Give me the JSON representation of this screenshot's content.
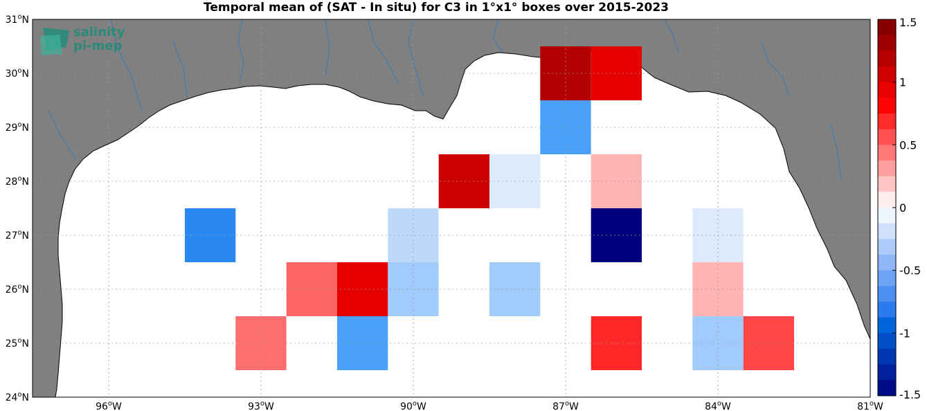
{
  "title": "Temporal mean of (SAT - In situ) for C3 in 1°x1° boxes over 2015-2023",
  "logo": {
    "line1": "salinity",
    "line2": "pi-mep"
  },
  "colors": {
    "land": "#808080",
    "ocean": "#ffffff",
    "coast": "#000000",
    "river": "#3a7ab8",
    "grid": "#9a9a9a"
  },
  "axes": {
    "lon_ticks": [
      {
        "value": -96,
        "deg": "96",
        "hem": "W"
      },
      {
        "value": -93,
        "deg": "93",
        "hem": "W"
      },
      {
        "value": -90,
        "deg": "90",
        "hem": "W"
      },
      {
        "value": -87,
        "deg": "87",
        "hem": "W"
      },
      {
        "value": -84,
        "deg": "84",
        "hem": "W"
      },
      {
        "value": -81,
        "deg": "81",
        "hem": "W"
      }
    ],
    "lat_ticks": [
      {
        "value": 31,
        "deg": "31",
        "hem": "N"
      },
      {
        "value": 30,
        "deg": "30",
        "hem": "N"
      },
      {
        "value": 29,
        "deg": "29",
        "hem": "N"
      },
      {
        "value": 28,
        "deg": "28",
        "hem": "N"
      },
      {
        "value": 27,
        "deg": "27",
        "hem": "N"
      },
      {
        "value": 26,
        "deg": "26",
        "hem": "N"
      },
      {
        "value": 25,
        "deg": "25",
        "hem": "N"
      },
      {
        "value": 24,
        "deg": "24",
        "hem": "N"
      }
    ]
  },
  "colorbar": {
    "range": [
      -1.5,
      1.5
    ],
    "levels": 24,
    "tick_labels": [
      "1.5",
      "1",
      "0.5",
      "0",
      "-0.5",
      "-1",
      "-1.5"
    ],
    "tick_values": [
      1.5,
      1,
      0.5,
      0,
      -0.5,
      -1,
      -1.5
    ]
  },
  "chart_data": {
    "type": "heatmap",
    "lon_range": [
      -97.5,
      -81
    ],
    "lat_range": [
      24,
      31
    ],
    "cell_size_deg": 1,
    "cells": [
      {
        "lon": [
          -87.5,
          -86.5
        ],
        "lat": [
          29.5,
          30.5
        ],
        "value": 1.2,
        "color": "#b40000"
      },
      {
        "lon": [
          -86.5,
          -85.5
        ],
        "lat": [
          29.5,
          30.5
        ],
        "value": 1.0,
        "color": "#e60000"
      },
      {
        "lon": [
          -87.5,
          -86.5
        ],
        "lat": [
          28.5,
          29.5
        ],
        "value": -0.55,
        "color": "#4ba0fa"
      },
      {
        "lon": [
          -89.5,
          -88.5
        ],
        "lat": [
          27.5,
          28.5
        ],
        "value": 1.1,
        "color": "#cc0000"
      },
      {
        "lon": [
          -88.5,
          -87.5
        ],
        "lat": [
          27.5,
          28.5
        ],
        "value": -0.1,
        "color": "#dcebfb"
      },
      {
        "lon": [
          -86.5,
          -85.5
        ],
        "lat": [
          27.5,
          28.5
        ],
        "value": 0.3,
        "color": "#ffb4b4"
      },
      {
        "lon": [
          -94.5,
          -93.5
        ],
        "lat": [
          26.5,
          27.5
        ],
        "value": -0.7,
        "color": "#2887f0"
      },
      {
        "lon": [
          -90.5,
          -89.5
        ],
        "lat": [
          26.5,
          27.5
        ],
        "value": -0.25,
        "color": "#bcd9fa"
      },
      {
        "lon": [
          -86.5,
          -85.5
        ],
        "lat": [
          26.5,
          27.5
        ],
        "value": -1.5,
        "color": "#00007d"
      },
      {
        "lon": [
          -84.5,
          -83.5
        ],
        "lat": [
          26.5,
          27.5
        ],
        "value": -0.1,
        "color": "#dcebfb"
      },
      {
        "lon": [
          -92.5,
          -91.5
        ],
        "lat": [
          25.5,
          26.5
        ],
        "value": 0.6,
        "color": "#ff6464"
      },
      {
        "lon": [
          -91.5,
          -90.5
        ],
        "lat": [
          25.5,
          26.5
        ],
        "value": 1.0,
        "color": "#e60000"
      },
      {
        "lon": [
          -90.5,
          -89.5
        ],
        "lat": [
          25.5,
          26.5
        ],
        "value": -0.35,
        "color": "#a0cbfb"
      },
      {
        "lon": [
          -88.5,
          -87.5
        ],
        "lat": [
          25.5,
          26.5
        ],
        "value": -0.35,
        "color": "#a0cbfb"
      },
      {
        "lon": [
          -84.5,
          -83.5
        ],
        "lat": [
          25.5,
          26.5
        ],
        "value": 0.3,
        "color": "#ffb4b4"
      },
      {
        "lon": [
          -93.5,
          -92.5
        ],
        "lat": [
          24.5,
          25.5
        ],
        "value": 0.55,
        "color": "#ff6e6e"
      },
      {
        "lon": [
          -91.5,
          -90.5
        ],
        "lat": [
          24.5,
          25.5
        ],
        "value": -0.55,
        "color": "#4ba0fa"
      },
      {
        "lon": [
          -86.5,
          -85.5
        ],
        "lat": [
          24.5,
          25.5
        ],
        "value": 0.9,
        "color": "#ff2828"
      },
      {
        "lon": [
          -84.5,
          -83.5
        ],
        "lat": [
          24.5,
          25.5
        ],
        "value": -0.35,
        "color": "#a0cbfb"
      },
      {
        "lon": [
          -83.5,
          -82.5
        ],
        "lat": [
          24.5,
          25.5
        ],
        "value": 0.75,
        "color": "#ff4646"
      }
    ]
  }
}
